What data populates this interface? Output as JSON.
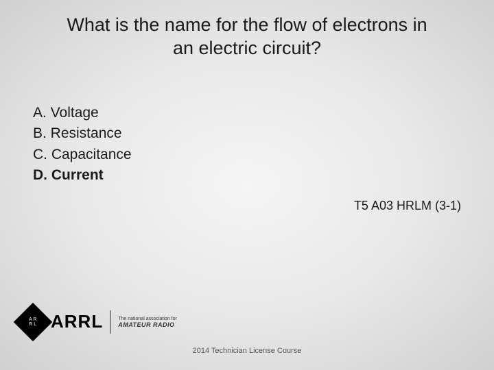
{
  "question_line1": "What is the name for the flow of electrons in",
  "question_line2": "an electric circuit?",
  "options": {
    "a": "A. Voltage",
    "b": "B. Resistance",
    "c": "C. Capacitance",
    "d": "D. Current"
  },
  "correct_index": 3,
  "reference": "T5 A03 HRLM (3-1)",
  "footer": "2014 Technician License Course",
  "logo": {
    "arrl": "ARRL",
    "tagline": "The national association for",
    "amateur": "AMATEUR RADIO",
    "diamond_top": "A R",
    "diamond_bot": "R L"
  },
  "colors": {
    "text": "#1a1a1a",
    "bg_center": "#f5f5f5",
    "bg_edge": "#d0d0d0",
    "footer_text": "#555555",
    "logo_black": "#000000"
  },
  "fontsize": {
    "question": 27,
    "options": 21,
    "reference": 18,
    "footer": 11
  }
}
